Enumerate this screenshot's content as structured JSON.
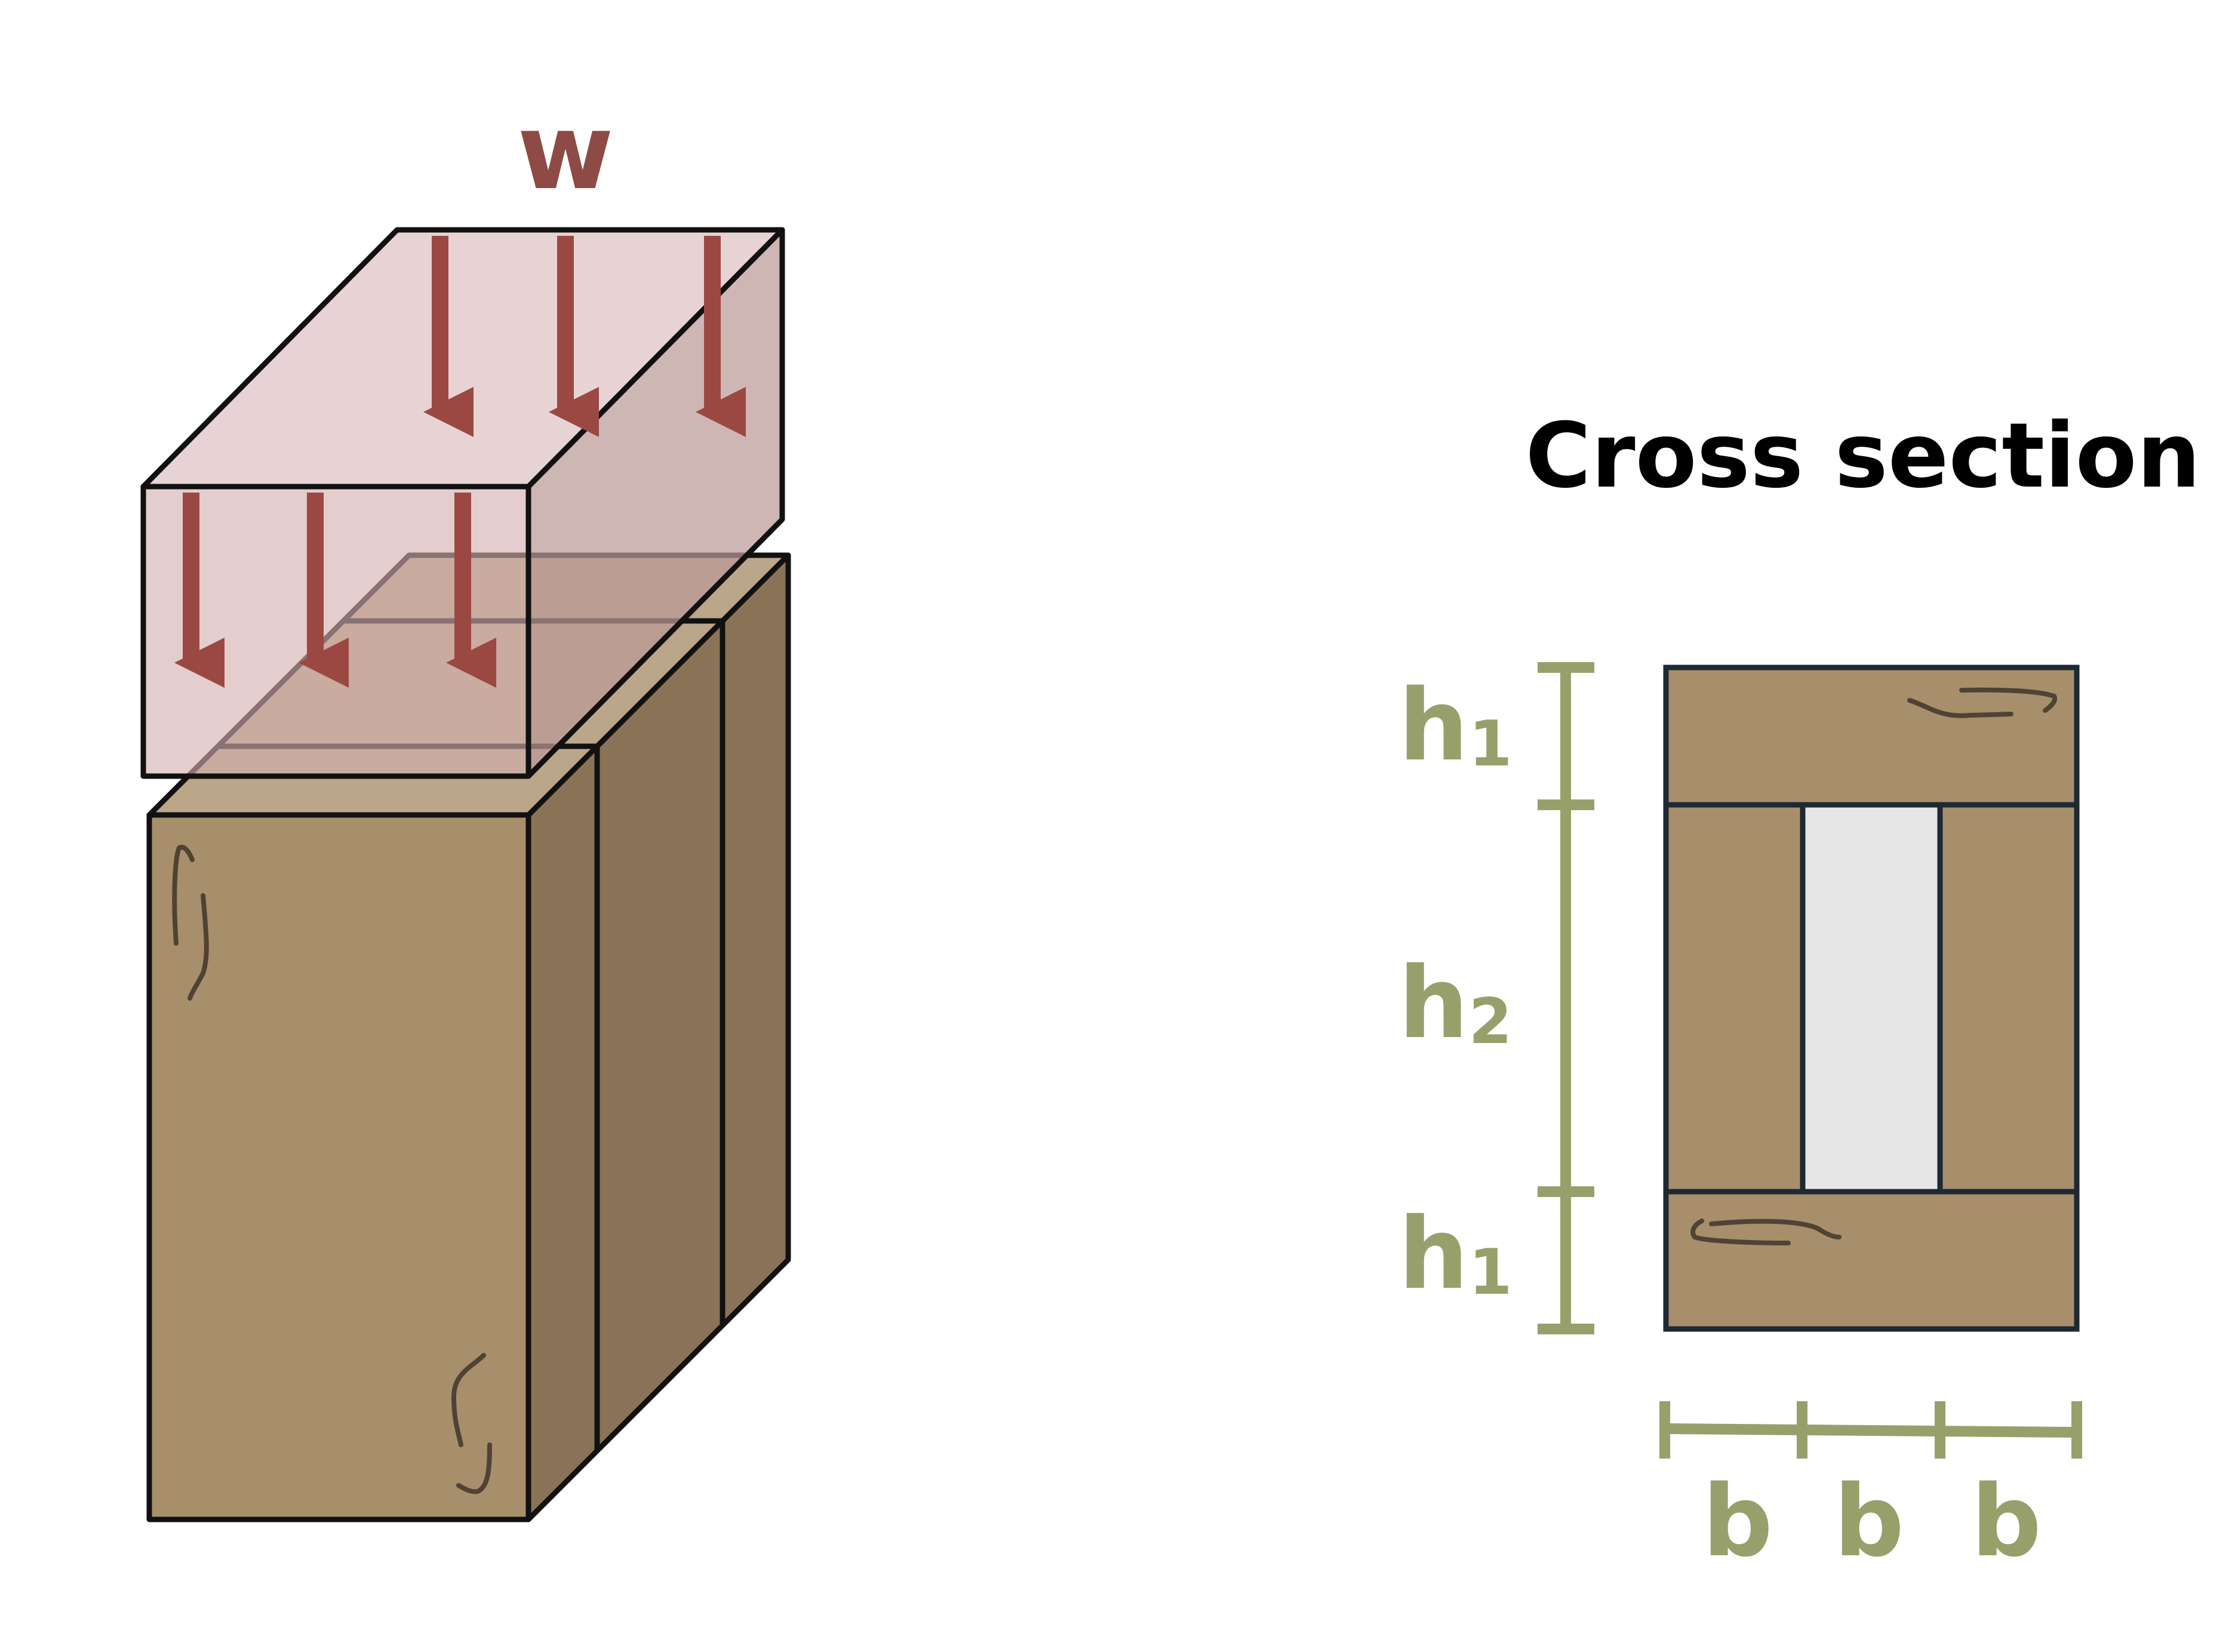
{
  "load": {
    "symbol": "w"
  },
  "cross_section": {
    "title": "Cross section",
    "vertical_dimensions": [
      {
        "symbol": "h",
        "subscript": "1"
      },
      {
        "symbol": "h",
        "subscript": "2"
      },
      {
        "symbol": "h",
        "subscript": "1"
      }
    ],
    "horizontal_dimensions": [
      {
        "symbol": "b"
      },
      {
        "symbol": "b"
      },
      {
        "symbol": "b"
      }
    ]
  },
  "colors": {
    "wood_front": "#a88f6b",
    "wood_side": "#8a7357",
    "wood_top": "#bca68a",
    "load_front": "#d4aeae",
    "load_side": "#bb9a99",
    "load_arrow": "#9c4842",
    "load_label": "#8e4a44",
    "dimension": "#97a06b",
    "hollow": "#e6e6e6",
    "outline": "#111111",
    "grain": "#4e4334"
  }
}
